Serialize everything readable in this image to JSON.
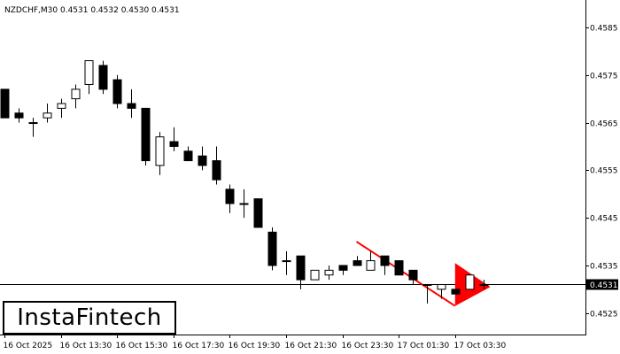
{
  "header": {
    "symbol_label": "NZDCHF,M30",
    "ohlc_values": [
      "0.4531",
      "0.4532",
      "0.4530",
      "0.4531"
    ]
  },
  "logo": {
    "text": "InstaFintech"
  },
  "colors": {
    "bull_fill": "#ffffff",
    "bear_fill": "#000000",
    "pattern": "#ff0000",
    "price_label_bg": "#000000",
    "price_label_text": "#ffffff"
  },
  "chart_data": {
    "type": "candlestick",
    "timeframe": "M30",
    "x_tick_labels": [
      "16 Oct 2025",
      "16 Oct 13:30",
      "16 Oct 15:30",
      "16 Oct 17:30",
      "16 Oct 19:30",
      "16 Oct 21:30",
      "16 Oct 23:30",
      "17 Oct 01:30",
      "17 Oct 03:30"
    ],
    "y_tick_labels": [
      "0.4585",
      "0.4575",
      "0.4565",
      "0.4555",
      "0.4545",
      "0.4535",
      "0.4525"
    ],
    "ylim": [
      0.45205,
      0.459
    ],
    "current_price": "0.4531",
    "candles": [
      {
        "o": 0.4572,
        "h": 0.4572,
        "l": 0.4566,
        "c": 0.4566
      },
      {
        "o": 0.4567,
        "h": 0.4568,
        "l": 0.4565,
        "c": 0.4566
      },
      {
        "o": 0.4565,
        "h": 0.4566,
        "l": 0.4562,
        "c": 0.4565
      },
      {
        "o": 0.4566,
        "h": 0.4569,
        "l": 0.4565,
        "c": 0.4567
      },
      {
        "o": 0.4568,
        "h": 0.457,
        "l": 0.4566,
        "c": 0.4569
      },
      {
        "o": 0.457,
        "h": 0.4573,
        "l": 0.4568,
        "c": 0.4572
      },
      {
        "o": 0.4573,
        "h": 0.4578,
        "l": 0.4571,
        "c": 0.4578
      },
      {
        "o": 0.4577,
        "h": 0.4578,
        "l": 0.4571,
        "c": 0.4572
      },
      {
        "o": 0.4574,
        "h": 0.4575,
        "l": 0.4568,
        "c": 0.4569
      },
      {
        "o": 0.4569,
        "h": 0.4572,
        "l": 0.4566,
        "c": 0.4568
      },
      {
        "o": 0.4568,
        "h": 0.4568,
        "l": 0.4556,
        "c": 0.4557
      },
      {
        "o": 0.4556,
        "h": 0.4563,
        "l": 0.4554,
        "c": 0.4562
      },
      {
        "o": 0.4561,
        "h": 0.4564,
        "l": 0.4559,
        "c": 0.456
      },
      {
        "o": 0.4559,
        "h": 0.456,
        "l": 0.4557,
        "c": 0.4557
      },
      {
        "o": 0.4558,
        "h": 0.456,
        "l": 0.4555,
        "c": 0.4556
      },
      {
        "o": 0.4557,
        "h": 0.456,
        "l": 0.4552,
        "c": 0.4553
      },
      {
        "o": 0.4551,
        "h": 0.4552,
        "l": 0.4546,
        "c": 0.4548
      },
      {
        "o": 0.4548,
        "h": 0.4551,
        "l": 0.4545,
        "c": 0.4548
      },
      {
        "o": 0.4549,
        "h": 0.4549,
        "l": 0.4543,
        "c": 0.4543
      },
      {
        "o": 0.4542,
        "h": 0.4543,
        "l": 0.4534,
        "c": 0.4535
      },
      {
        "o": 0.4536,
        "h": 0.4538,
        "l": 0.4533,
        "c": 0.4536
      },
      {
        "o": 0.4537,
        "h": 0.4537,
        "l": 0.453,
        "c": 0.4532
      },
      {
        "o": 0.4532,
        "h": 0.4534,
        "l": 0.4532,
        "c": 0.4534
      },
      {
        "o": 0.4533,
        "h": 0.4535,
        "l": 0.4532,
        "c": 0.4534
      },
      {
        "o": 0.4535,
        "h": 0.4535,
        "l": 0.4533,
        "c": 0.4534
      },
      {
        "o": 0.4536,
        "h": 0.4537,
        "l": 0.4535,
        "c": 0.4535
      },
      {
        "o": 0.4534,
        "h": 0.4538,
        "l": 0.4534,
        "c": 0.4536
      },
      {
        "o": 0.4537,
        "h": 0.4537,
        "l": 0.4533,
        "c": 0.4535
      },
      {
        "o": 0.4536,
        "h": 0.4536,
        "l": 0.4533,
        "c": 0.4533
      },
      {
        "o": 0.4534,
        "h": 0.4534,
        "l": 0.4531,
        "c": 0.4532
      },
      {
        "o": 0.4531,
        "h": 0.4531,
        "l": 0.4527,
        "c": 0.4531
      },
      {
        "o": 0.453,
        "h": 0.4531,
        "l": 0.4528,
        "c": 0.4531
      },
      {
        "o": 0.453,
        "h": 0.453,
        "l": 0.4529,
        "c": 0.4529
      },
      {
        "o": 0.453,
        "h": 0.4533,
        "l": 0.453,
        "c": 0.4533
      },
      {
        "o": 0.4531,
        "h": 0.4532,
        "l": 0.453,
        "c": 0.4531
      }
    ],
    "pattern": {
      "name": "Bearish Pennant",
      "line_start": {
        "candle": 25.0,
        "price": 0.454
      },
      "line_end": {
        "candle": 32.0,
        "price": 0.45265
      },
      "triangle": [
        {
          "candle": 32.0,
          "price": 0.45355
        },
        {
          "candle": 34.5,
          "price": 0.45305
        },
        {
          "candle": 32.0,
          "price": 0.45265
        }
      ]
    }
  }
}
